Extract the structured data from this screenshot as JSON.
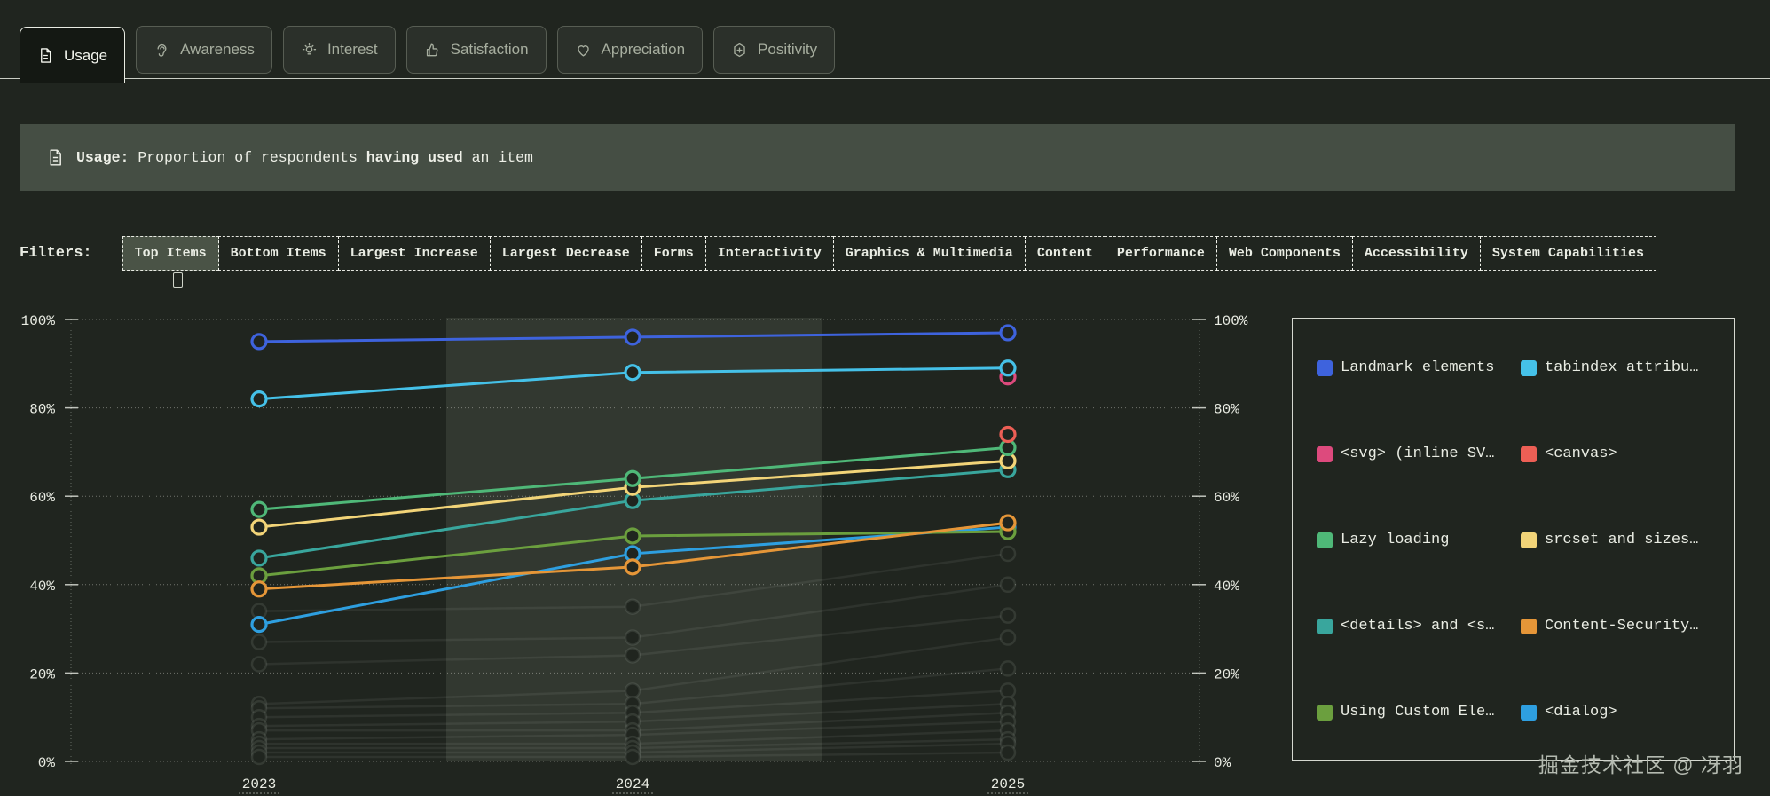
{
  "tabs": {
    "items": [
      {
        "label": "Usage",
        "icon": "file-icon",
        "active": true
      },
      {
        "label": "Awareness",
        "icon": "ear-icon",
        "active": false
      },
      {
        "label": "Interest",
        "icon": "bulb-icon",
        "active": false
      },
      {
        "label": "Satisfaction",
        "icon": "thumbs-up-icon",
        "active": false
      },
      {
        "label": "Appreciation",
        "icon": "heart-icon",
        "active": false
      },
      {
        "label": "Positivity",
        "icon": "hexagon-plus-icon",
        "active": false
      }
    ]
  },
  "banner": {
    "icon": "file-icon",
    "parts": [
      {
        "text": "Usage:",
        "bold": true
      },
      {
        "text": " Proportion of respondents ",
        "bold": false
      },
      {
        "text": "having used",
        "bold": true
      },
      {
        "text": " an item",
        "bold": false
      }
    ]
  },
  "filters": {
    "label": "Filters:",
    "buttons": [
      {
        "label": "Top Items",
        "active": true
      },
      {
        "label": "Bottom Items",
        "active": false
      },
      {
        "label": "Largest Increase",
        "active": false
      },
      {
        "label": "Largest Decrease",
        "active": false
      },
      {
        "label": "Forms",
        "active": false
      },
      {
        "label": "Interactivity",
        "active": false
      },
      {
        "label": "Graphics & Multimedia",
        "active": false
      },
      {
        "label": "Content",
        "active": false
      },
      {
        "label": "Performance",
        "active": false
      },
      {
        "label": "Web Components",
        "active": false
      },
      {
        "label": "Accessibility",
        "active": false
      },
      {
        "label": "System Capabilities",
        "active": false
      }
    ]
  },
  "chart_data": {
    "type": "line",
    "x": [
      "2023",
      "2024",
      "2025"
    ],
    "ylim": [
      0,
      100
    ],
    "yticks": [
      0,
      20,
      40,
      60,
      80,
      100
    ],
    "ytick_suffix": "%",
    "grid": true,
    "highlighted_x": "2024",
    "legend_position": "right",
    "series": [
      {
        "name": "Landmark elements",
        "color": "#3e63dd",
        "values": [
          95,
          96,
          97
        ]
      },
      {
        "name": "tabindex attribu…",
        "color": "#45c1e8",
        "values": [
          82,
          88,
          89
        ]
      },
      {
        "name": "<svg> (inline SV…",
        "color": "#dd4a7d",
        "values": [
          null,
          null,
          87
        ]
      },
      {
        "name": "<canvas>",
        "color": "#ed5f55",
        "values": [
          null,
          null,
          74
        ]
      },
      {
        "name": "Lazy loading",
        "color": "#4fb878",
        "values": [
          57,
          64,
          71
        ]
      },
      {
        "name": "srcset and sizes…",
        "color": "#f2d478",
        "values": [
          53,
          62,
          68
        ]
      },
      {
        "name": "<details> and <s…",
        "color": "#39a69d",
        "values": [
          46,
          59,
          66
        ]
      },
      {
        "name": "Content-Security…",
        "color": "#e59638",
        "values": [
          39,
          44,
          54
        ]
      },
      {
        "name": "Using Custom Ele…",
        "color": "#6b9f3e",
        "values": [
          42,
          51,
          52
        ]
      },
      {
        "name": "<dialog>",
        "color": "#2e9fe0",
        "values": [
          31,
          47,
          53
        ]
      }
    ],
    "background_series": [
      [
        34,
        35,
        47
      ],
      [
        27,
        28,
        40
      ],
      [
        22,
        24,
        33
      ],
      [
        13,
        16,
        28
      ],
      [
        12,
        13,
        21
      ],
      [
        10,
        11,
        16
      ],
      [
        8,
        9,
        13
      ],
      [
        7,
        7,
        11
      ],
      [
        5,
        6,
        9
      ],
      [
        4,
        4,
        7
      ],
      [
        3,
        3,
        5
      ],
      [
        2,
        2,
        4
      ],
      [
        1,
        1,
        2
      ]
    ]
  },
  "legend": {
    "items": [
      {
        "label": "Landmark elements",
        "color": "#3e63dd"
      },
      {
        "label": "tabindex attribu…",
        "color": "#45c1e8"
      },
      {
        "label": "<svg> (inline SV…",
        "color": "#dd4a7d"
      },
      {
        "label": "<canvas>",
        "color": "#ed5f55"
      },
      {
        "label": "Lazy loading",
        "color": "#4fb878"
      },
      {
        "label": "srcset and sizes…",
        "color": "#f2d478"
      },
      {
        "label": "<details> and <s…",
        "color": "#39a69d"
      },
      {
        "label": "Content-Security…",
        "color": "#e59638"
      },
      {
        "label": "Using Custom Ele…",
        "color": "#6b9f3e"
      },
      {
        "label": "<dialog>",
        "color": "#2e9fe0"
      }
    ]
  },
  "watermark": {
    "text": "掘金技术社区 @ 冴羽"
  }
}
